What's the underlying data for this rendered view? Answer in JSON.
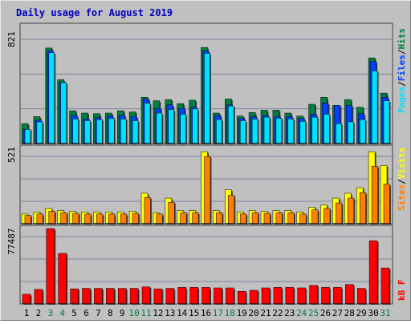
{
  "title": "Daily usage for August 2019",
  "colors": {
    "frame": "#c0c0c0",
    "title": "#0000c0",
    "hits": "#008040",
    "files": "#0040ff",
    "pages": "#00e0ff",
    "visits": "#ffff00",
    "sites": "#ff8000",
    "kbytes": "#ff0000",
    "weekend_day": "#008040",
    "weekday": "#000000"
  },
  "legend_top": {
    "pages": "Pages",
    "sep1": "/",
    "files": "Files",
    "sep2": "/",
    "hits": "Hits"
  },
  "legend_mid": {
    "sites": "Sites",
    "sep": "/",
    "visits": "Visits"
  },
  "legend_bot": {
    "kbytes": "kB F"
  },
  "axis_max": {
    "top": "821",
    "mid": "521",
    "bot": "77487"
  },
  "chart_data": [
    {
      "type": "bar",
      "title": "Daily usage for August 2019",
      "categories": [
        "1",
        "2",
        "3",
        "4",
        "5",
        "6",
        "7",
        "8",
        "9",
        "10",
        "11",
        "12",
        "13",
        "14",
        "15",
        "16",
        "17",
        "18",
        "19",
        "20",
        "21",
        "22",
        "23",
        "24",
        "25",
        "26",
        "27",
        "28",
        "29",
        "30",
        "31"
      ],
      "weekend_days": [
        "3",
        "4",
        "10",
        "11",
        "17",
        "18",
        "24",
        "25",
        "31"
      ],
      "ylim": [
        0,
        821
      ],
      "series": [
        {
          "name": "Hits",
          "values": [
            170,
            230,
            815,
            545,
            280,
            260,
            255,
            260,
            280,
            270,
            395,
            365,
            375,
            340,
            370,
            820,
            260,
            380,
            235,
            265,
            285,
            285,
            260,
            235,
            335,
            395,
            325,
            375,
            310,
            730,
            430
          ]
        },
        {
          "name": "Files",
          "values": [
            120,
            200,
            790,
            520,
            240,
            210,
            220,
            235,
            240,
            230,
            380,
            300,
            330,
            300,
            310,
            790,
            240,
            330,
            215,
            230,
            240,
            230,
            230,
            215,
            250,
            345,
            325,
            325,
            255,
            700,
            395
          ]
        },
        {
          "name": "Pages",
          "values": [
            120,
            185,
            775,
            520,
            210,
            195,
            205,
            215,
            210,
            195,
            345,
            260,
            290,
            250,
            295,
            770,
            205,
            320,
            195,
            210,
            225,
            215,
            210,
            190,
            225,
            250,
            170,
            185,
            205,
            620,
            365
          ]
        }
      ]
    },
    {
      "type": "bar",
      "categories": [
        "1",
        "2",
        "3",
        "4",
        "5",
        "6",
        "7",
        "8",
        "9",
        "10",
        "11",
        "12",
        "13",
        "14",
        "15",
        "16",
        "17",
        "18",
        "19",
        "20",
        "21",
        "22",
        "23",
        "24",
        "25",
        "26",
        "27",
        "28",
        "29",
        "30",
        "31"
      ],
      "ylim": [
        0,
        521
      ],
      "series": [
        {
          "name": "Visits",
          "values": [
            70,
            85,
            110,
            95,
            90,
            85,
            85,
            85,
            85,
            90,
            220,
            80,
            185,
            95,
            95,
            520,
            95,
            245,
            85,
            95,
            90,
            95,
            95,
            85,
            120,
            135,
            185,
            220,
            260,
            520,
            420
          ]
        },
        {
          "name": "Sites",
          "values": [
            60,
            70,
            90,
            80,
            75,
            70,
            70,
            70,
            70,
            75,
            190,
            70,
            155,
            80,
            80,
            485,
            80,
            205,
            70,
            80,
            75,
            80,
            80,
            70,
            100,
            110,
            150,
            185,
            225,
            415,
            285
          ]
        }
      ]
    },
    {
      "type": "bar",
      "categories": [
        "1",
        "2",
        "3",
        "4",
        "5",
        "6",
        "7",
        "8",
        "9",
        "10",
        "11",
        "12",
        "13",
        "14",
        "15",
        "16",
        "17",
        "18",
        "19",
        "20",
        "21",
        "22",
        "23",
        "24",
        "25",
        "26",
        "27",
        "28",
        "29",
        "30",
        "31"
      ],
      "ylim": [
        0,
        77487
      ],
      "series": [
        {
          "name": "kB F",
          "values": [
            10000,
            15000,
            77487,
            52000,
            15500,
            16000,
            16000,
            16000,
            16000,
            16000,
            17500,
            15500,
            16000,
            17000,
            17000,
            17000,
            16500,
            16500,
            13000,
            14000,
            16500,
            17000,
            17000,
            16500,
            19000,
            17000,
            17000,
            20000,
            16000,
            65000,
            37000
          ]
        }
      ]
    }
  ]
}
